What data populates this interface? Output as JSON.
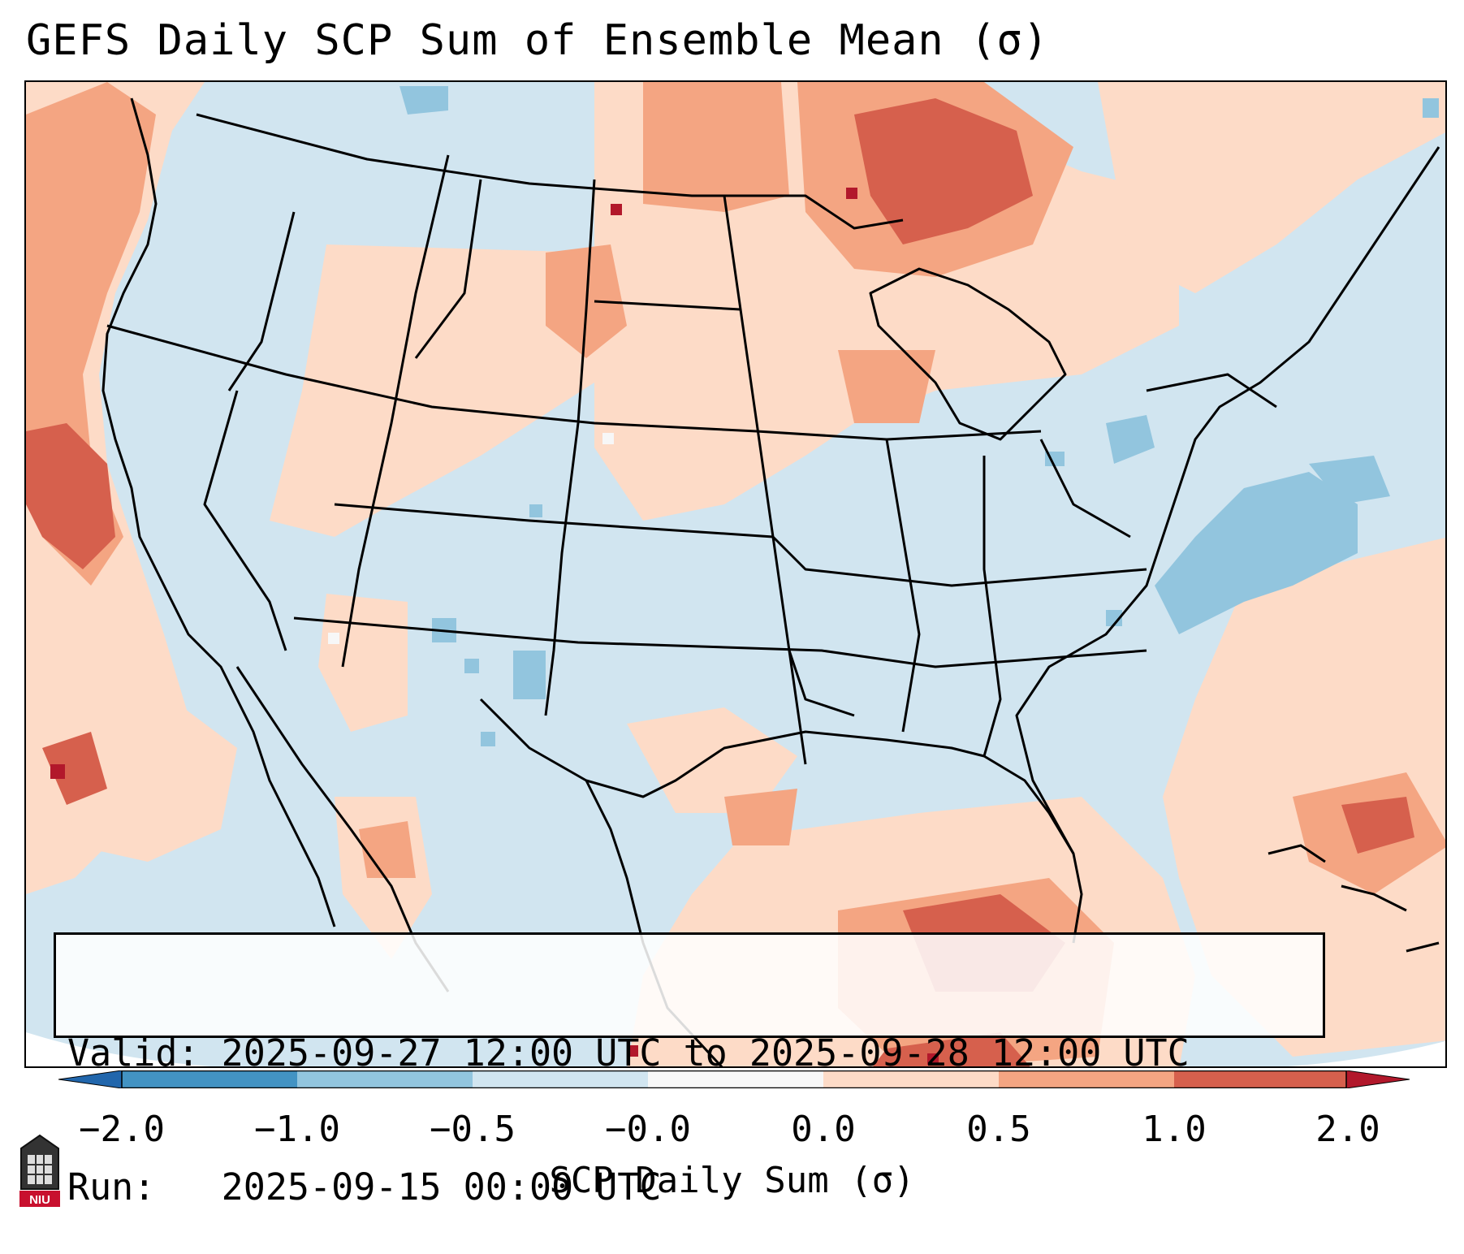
{
  "title": "GEFS Daily SCP Sum of Ensemble Mean (σ)",
  "info": {
    "valid_line": "Valid: 2025-09-27 12:00 UTC to 2025-09-28 12:00 UTC",
    "run_line": "Run:   2025-09-15 00:00 UTC"
  },
  "colorbar": {
    "label": "SCP Daily Sum (σ)",
    "ticks": [
      "−2.0",
      "−1.0",
      "−0.5",
      "−0.0",
      "0.0",
      "0.5",
      "1.0",
      "2.0"
    ],
    "colors": [
      "#4393c3",
      "#92c5de",
      "#d1e5f0",
      "#f7f7f7",
      "#fddbc7",
      "#f4a582",
      "#d6604d"
    ],
    "extend_low_color": "#2166ac",
    "extend_high_color": "#b2182b"
  },
  "logo": {
    "text": "NIU"
  },
  "map": {
    "base_color": "#d1e5f0",
    "outside_color": "#ffffff",
    "line_color": "#000000"
  }
}
